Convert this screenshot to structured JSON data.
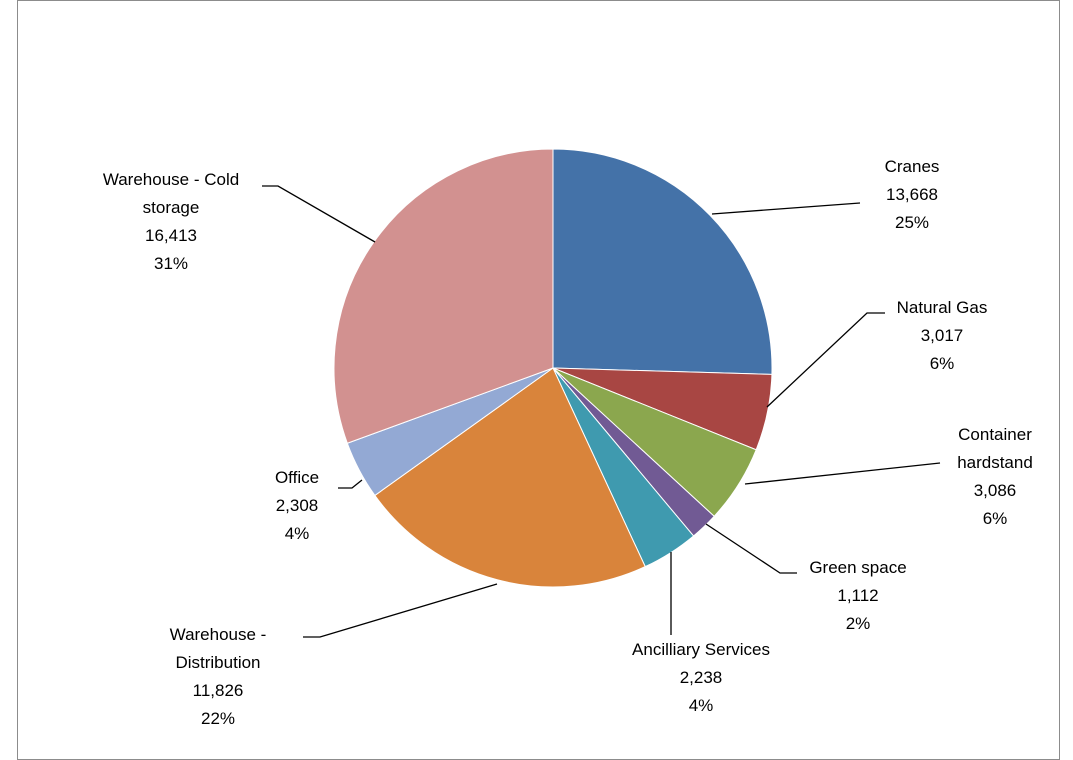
{
  "chart_data": {
    "type": "pie",
    "title": "",
    "colors": {
      "Cranes": "#4472A8",
      "Natural Gas": "#A84643",
      "Container hardstand": "#8BA74E",
      "Green space": "#715A94",
      "Ancilliary Services": "#3F9AAF",
      "Warehouse - Distribution": "#D9843B",
      "Office": "#93A9D4",
      "Warehouse - Cold storage": "#D29190"
    },
    "slices": [
      {
        "label": "Cranes",
        "label_lines": [
          "Cranes"
        ],
        "value": 13668,
        "value_text": "13,668",
        "percent_text": "25%"
      },
      {
        "label": "Natural Gas",
        "label_lines": [
          "Natural Gas"
        ],
        "value": 3017,
        "value_text": "3,017",
        "percent_text": "6%"
      },
      {
        "label": "Container hardstand",
        "label_lines": [
          "Container",
          "hardstand"
        ],
        "value": 3086,
        "value_text": "3,086",
        "percent_text": "6%"
      },
      {
        "label": "Green space",
        "label_lines": [
          "Green space"
        ],
        "value": 1112,
        "value_text": "1,112",
        "percent_text": "2%"
      },
      {
        "label": "Ancilliary Services",
        "label_lines": [
          "Ancilliary Services"
        ],
        "value": 2238,
        "value_text": "2,238",
        "percent_text": "4%"
      },
      {
        "label": "Warehouse - Distribution",
        "label_lines": [
          "Warehouse -",
          "Distribution"
        ],
        "value": 11826,
        "value_text": "11,826",
        "percent_text": "22%"
      },
      {
        "label": "Office",
        "label_lines": [
          "Office"
        ],
        "value": 2308,
        "value_text": "2,308",
        "percent_text": "4%"
      },
      {
        "label": "Warehouse - Cold storage",
        "label_lines": [
          "Warehouse - Cold",
          "storage"
        ],
        "value": 16413,
        "value_text": "16,413",
        "percent_text": "31%"
      }
    ]
  }
}
